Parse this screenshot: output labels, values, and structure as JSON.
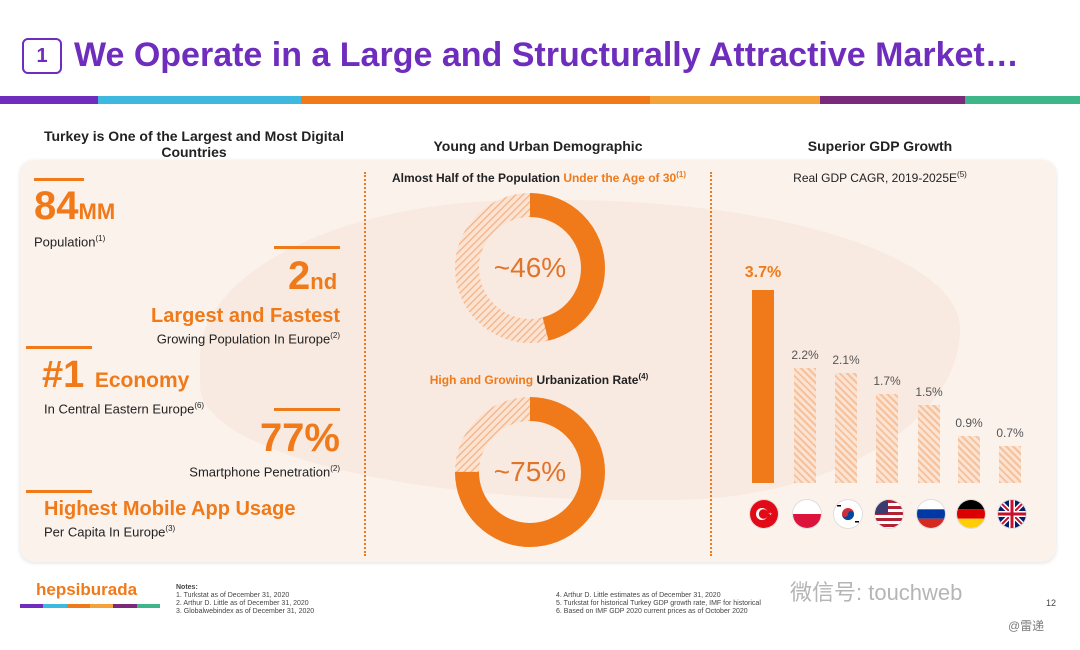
{
  "slide": {
    "number": "1",
    "title": "We Operate in a Large and Structurally Attractive Market…",
    "colors": {
      "purple": "#6f2dbd",
      "orange": "#f07a1a",
      "light_orange": "#f6c19a"
    }
  },
  "col1": {
    "heading": "Turkey is One of the Largest and Most Digital Countries",
    "stat1": {
      "value": "84",
      "unit": "MM",
      "label": "Population",
      "note": "(1)"
    },
    "stat2": {
      "value": "2",
      "suffix": "nd",
      "headline": "Largest and Fastest",
      "label": "Growing Population In Europe",
      "note": "(2)"
    },
    "stat3": {
      "value": "#1",
      "headline": "Economy",
      "label": "In Central Eastern Europe",
      "note": "(6)"
    },
    "stat4": {
      "value": "77%",
      "label": "Smartphone Penetration",
      "note": "(2)"
    },
    "stat5": {
      "headline": "Highest Mobile App Usage",
      "label": "Per Capita In Europe",
      "note": "(3)"
    }
  },
  "col2": {
    "heading": "Young and Urban Demographic",
    "donut1": {
      "label_a": "Almost Half of the Population ",
      "label_b": "Under the Age of 30",
      "note": "(1)",
      "value_text": "~46%",
      "fraction": 0.46
    },
    "donut2": {
      "label_a": "High and Growing ",
      "label_b": "Urbanization Rate",
      "note": "(4)",
      "value_text": "~75%",
      "fraction": 0.75
    }
  },
  "col3": {
    "heading": "Superior GDP Growth",
    "subtitle": "Real GDP CAGR, 2019-2025E",
    "note": "(5)"
  },
  "chart_data": {
    "type": "bar",
    "title": "Real GDP CAGR, 2019-2025E",
    "categories": [
      "Turkey",
      "Poland",
      "South Korea",
      "United States",
      "Russia",
      "Germany",
      "United Kingdom"
    ],
    "values": [
      3.7,
      2.2,
      2.1,
      1.7,
      1.5,
      0.9,
      0.7
    ],
    "labels": [
      "3.7%",
      "2.2%",
      "2.1%",
      "1.7%",
      "1.5%",
      "0.9%",
      "0.7%"
    ],
    "ylim": [
      0,
      3.7
    ],
    "highlight_index": 0
  },
  "footer": {
    "logo": "hepsiburada",
    "notes_title": "Notes:",
    "notes_left": [
      "1. Turkstat as of December 31, 2020",
      "2. Arthur D. Little as of December 31, 2020",
      "3. Globalwebindex as of December 31, 2020"
    ],
    "notes_right": [
      "4. Arthur D. Little estimates as of December 31, 2020",
      "5. Turkstat for historical Turkey GDP growth rate, IMF for historical",
      "6. Based on IMF GDP 2020 current prices as of October 2020"
    ],
    "page": "12",
    "watermark": "微信号: touchweb",
    "watermark2": "@雷递"
  }
}
